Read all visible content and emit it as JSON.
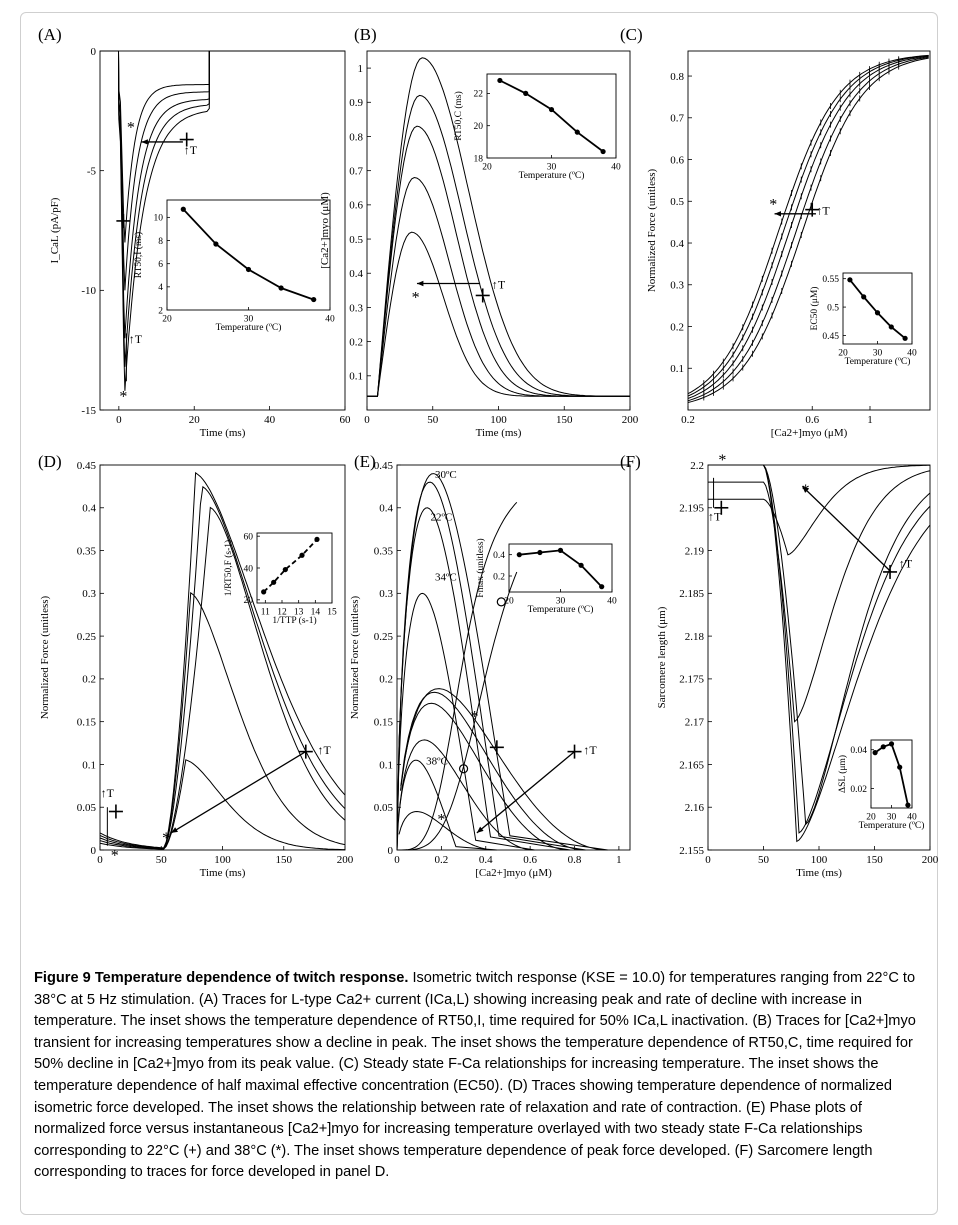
{
  "chart_data": [
    {
      "panel": "(A)",
      "type": "line",
      "xlabel": "Time (ms)",
      "ylabel": "I_CaL (pA/pF)",
      "xlim": [
        -5,
        60
      ],
      "ylim": [
        -15,
        0
      ],
      "xticks": [
        0,
        20,
        40,
        60
      ],
      "yticks": [
        -15,
        -10,
        -5,
        0
      ],
      "series_min_values": [
        -8.0,
        -10.0,
        -12.0,
        -13.2,
        -14.2
      ],
      "series_plateau_values": [
        -1.4,
        -1.7,
        -2.0,
        -2.2,
        -2.4
      ],
      "annotation_T": "↑T",
      "annotation_star": "*",
      "inset": {
        "type": "line",
        "xlabel": "Temperature (ºC)",
        "ylabel": "RT50,I (ms)",
        "x": [
          22,
          26,
          30,
          34,
          38
        ],
        "y": [
          10.7,
          7.7,
          5.5,
          3.9,
          2.9
        ],
        "xticks": [
          20,
          30,
          40
        ],
        "yticks": [
          2,
          4,
          6,
          8,
          10
        ],
        "xlim": [
          20,
          40
        ],
        "ylim": [
          2,
          11.5
        ]
      }
    },
    {
      "panel": "(B)",
      "type": "line",
      "xlabel": "Time (ms)",
      "ylabel": "[Ca2+]myo (μM)",
      "xlim": [
        0,
        200
      ],
      "ylim": [
        0,
        1.05
      ],
      "xticks": [
        0,
        50,
        100,
        150,
        200
      ],
      "yticks": [
        0.1,
        0.2,
        0.3,
        0.4,
        0.5,
        0.6,
        0.7,
        0.8,
        0.9,
        1
      ],
      "series_peak_values": [
        1.03,
        0.92,
        0.83,
        0.68,
        0.52
      ],
      "series_peak_times": [
        42,
        40,
        38,
        36,
        34
      ],
      "inset": {
        "type": "line",
        "xlabel": "Temperature (ºC)",
        "ylabel": "RT50,C (ms)",
        "x": [
          22,
          26,
          30,
          34,
          38
        ],
        "y": [
          22.8,
          22.0,
          21.0,
          19.6,
          18.4
        ],
        "xticks": [
          20,
          30,
          40
        ],
        "yticks": [
          18,
          20,
          22
        ],
        "xlim": [
          20,
          40
        ],
        "ylim": [
          18,
          23.2
        ]
      }
    },
    {
      "panel": "(C)",
      "type": "line",
      "xlabel": "[Ca2+]myo (μM)",
      "ylabel": "Normalized Force (unitless)",
      "xscale": "log",
      "xlim": [
        0.2,
        1.7
      ],
      "ylim": [
        0,
        0.86
      ],
      "xticks": [
        0.2,
        0.6,
        1.0
      ],
      "yticks": [
        0.1,
        0.2,
        0.3,
        0.4,
        0.5,
        0.6,
        0.7,
        0.8
      ],
      "fmax": 0.855,
      "ec50": [
        0.55,
        0.52,
        0.49,
        0.465,
        0.445
      ],
      "inset": {
        "type": "line",
        "xlabel": "Temperature (ºC)",
        "ylabel": "EC50 (μM)",
        "x": [
          22,
          26,
          30,
          34,
          38
        ],
        "y": [
          0.548,
          0.518,
          0.49,
          0.465,
          0.445
        ],
        "xticks": [
          20,
          30,
          40
        ],
        "yticks": [
          0.45,
          0.5,
          0.55
        ],
        "xlim": [
          20,
          40
        ],
        "ylim": [
          0.435,
          0.56
        ]
      }
    },
    {
      "panel": "(D)",
      "type": "line",
      "xlabel": "Time (ms)",
      "ylabel": "Normalized Force (unitless)",
      "xlim": [
        0,
        200
      ],
      "ylim": [
        0,
        0.45
      ],
      "xticks": [
        0,
        50,
        100,
        150,
        200
      ],
      "yticks": [
        0,
        0.05,
        0.1,
        0.15,
        0.2,
        0.25,
        0.3,
        0.35,
        0.4,
        0.45
      ],
      "series_peak_values": [
        0.44,
        0.425,
        0.4,
        0.3,
        0.105
      ],
      "series_peak_times": [
        78,
        83,
        90,
        74,
        70
      ],
      "inset": {
        "type": "line",
        "xlabel": "1/TTP (s-1)",
        "ylabel": "1/RT50,F (s-1)",
        "x": [
          10.9,
          11.5,
          12.2,
          13.2,
          14.1
        ],
        "y": [
          25,
          31,
          39,
          48,
          58
        ],
        "xticks": [
          11,
          12,
          13,
          14,
          15
        ],
        "yticks": [
          20,
          40,
          60
        ],
        "xlim": [
          10.5,
          15
        ],
        "ylim": [
          18,
          62
        ]
      }
    },
    {
      "panel": "(E)",
      "type": "line",
      "xlabel": "[Ca2+]myo (μM)",
      "ylabel": "Normalized Force (unitless)",
      "xlim": [
        0,
        1.05
      ],
      "ylim": [
        0,
        0.45
      ],
      "xticks": [
        0,
        0.2,
        0.4,
        0.6,
        0.8,
        1
      ],
      "yticks": [
        0,
        0.05,
        0.1,
        0.15,
        0.2,
        0.25,
        0.3,
        0.35,
        0.4,
        0.45
      ],
      "loop_labels": [
        "30ºC",
        "22ºC",
        "34ºC",
        "38ºC"
      ],
      "inset": {
        "type": "line",
        "xlabel": "Temperature (ºC)",
        "ylabel": "Fmax (unitless)",
        "x": [
          22,
          26,
          30,
          34,
          38
        ],
        "y": [
          0.4,
          0.42,
          0.44,
          0.3,
          0.1
        ],
        "xticks": [
          20,
          30,
          40
        ],
        "yticks": [
          0.2,
          0.4
        ],
        "xlim": [
          20,
          40
        ],
        "ylim": [
          0.05,
          0.5
        ]
      }
    },
    {
      "panel": "(F)",
      "type": "line",
      "xlabel": "Time (ms)",
      "ylabel": "Sarcomere length (μm)",
      "xlim": [
        0,
        200
      ],
      "ylim": [
        2.155,
        2.2
      ],
      "xticks": [
        0,
        50,
        100,
        150,
        200
      ],
      "yticks": [
        2.155,
        2.16,
        2.165,
        2.17,
        2.175,
        2.18,
        2.185,
        2.19,
        2.195,
        2.2
      ],
      "series_min_values": [
        2.156,
        2.157,
        2.158,
        2.17,
        2.1895
      ],
      "inset": {
        "type": "line",
        "xlabel": "Temperature (ºC)",
        "ylabel": "ΔSL (μm)",
        "x": [
          22,
          26,
          30,
          34,
          38
        ],
        "y": [
          0.0385,
          0.0415,
          0.043,
          0.031,
          0.0115
        ],
        "xticks": [
          20,
          30,
          40
        ],
        "yticks": [
          0.02,
          0.04
        ],
        "xlim": [
          20,
          40
        ],
        "ylim": [
          0.01,
          0.045
        ]
      }
    }
  ],
  "caption": {
    "title": "Figure 9 Temperature dependence of twitch response.",
    "body": " Isometric twitch response (KSE = 10.0) for temperatures ranging from 22°C to 38°C at 5 Hz stimulation. (A) Traces for L-type Ca2+ current (ICa,L) showing increasing peak and rate of decline with increase in temperature. The inset shows the temperature dependence of RT50,I, time required for 50% ICa,L inactivation. (B) Traces for [Ca2+]myo transient for increasing temperatures show a decline in peak. The inset shows the temperature dependence of RT50,C, time required for 50% decline in [Ca2+]myo from its peak value. (C) Steady state F-Ca relationships for increasing temperature. The inset shows the temperature dependence of half maximal effective concentration (EC50). (D) Traces showing temperature dependence of normalized isometric force developed. The inset shows the relationship between rate of relaxation and rate of contraction. (E) Phase plots of normalized force versus instantaneous [Ca2+]myo for increasing temperature overlayed with two steady state F-Ca relationships corresponding to 22°C (+) and 38°C (*). The inset shows temperature dependence of peak force developed. (F) Sarcomere length corresponding to traces for force developed in panel D."
  }
}
